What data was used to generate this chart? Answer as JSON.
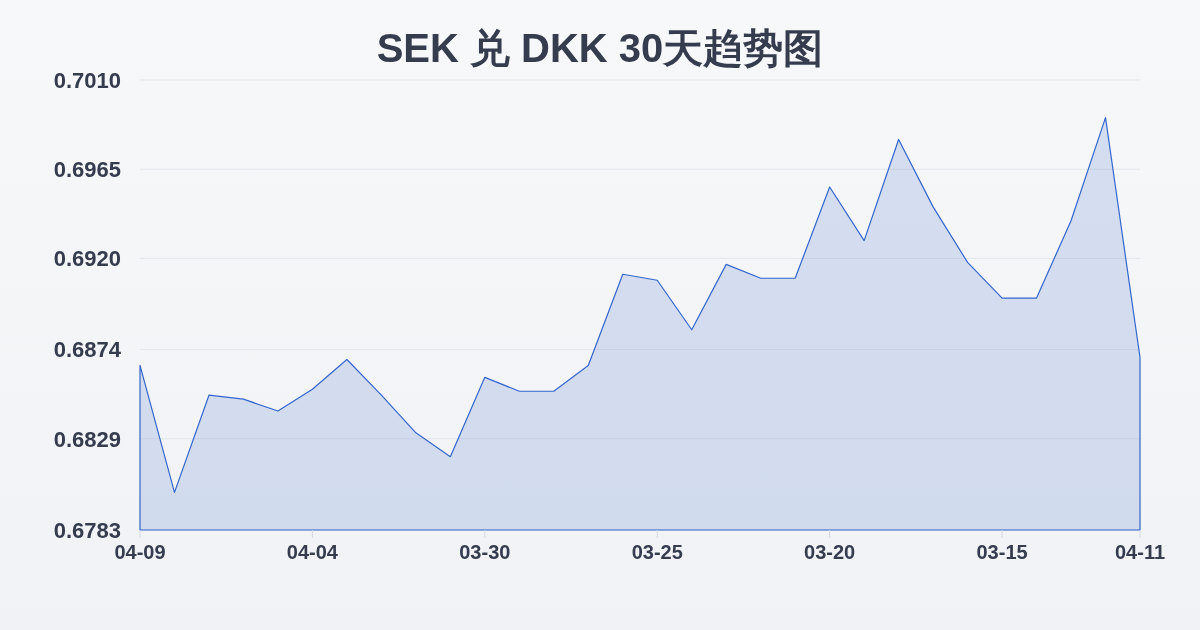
{
  "chart_data": {
    "type": "area",
    "title": "SEK 兑 DKK 30天趋势图",
    "categories": [
      "04-09",
      null,
      null,
      null,
      null,
      "04-04",
      null,
      null,
      null,
      null,
      "03-30",
      null,
      null,
      null,
      null,
      "03-25",
      null,
      null,
      null,
      null,
      "03-20",
      null,
      null,
      null,
      null,
      "03-15",
      null,
      null,
      null,
      "04-11"
    ],
    "series": [
      {
        "color": "#3366cc",
        "values": [
          0.6866,
          0.6802,
          0.6851,
          0.6849,
          0.6843,
          0.6854,
          0.6869,
          0.6851,
          0.6832,
          0.682,
          0.686,
          0.6853,
          0.6853,
          0.6866,
          0.6912,
          0.6909,
          0.6884,
          0.6917,
          0.691,
          0.691,
          0.6956,
          0.6929,
          0.698,
          0.6946,
          0.6918,
          0.69,
          0.69,
          0.6939,
          0.6991,
          0.687
        ]
      }
    ],
    "ylim": [
      0.6783,
      0.701
    ],
    "yticks": [
      0.6783,
      0.6829,
      0.6874,
      {
        "value": 0.692,
        "label": "0.6920"
      },
      0.6965,
      {
        "value": 0.701,
        "label": "0.7010"
      }
    ],
    "grid": "y"
  }
}
